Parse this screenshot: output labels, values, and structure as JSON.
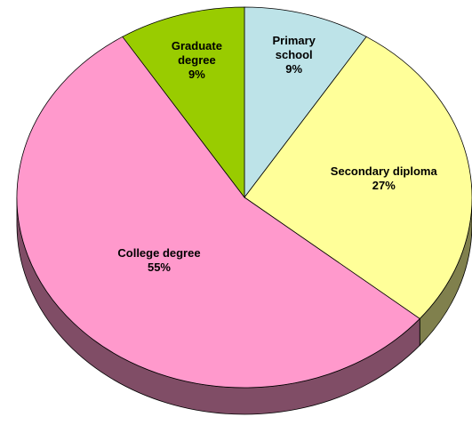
{
  "chart_data": {
    "type": "pie",
    "categories": [
      "Primary school",
      "Secondary diploma",
      "College degree",
      "Graduate degree"
    ],
    "values": [
      9,
      27,
      55,
      9
    ],
    "value_labels": [
      "9%",
      "27%",
      "55%",
      "9%"
    ],
    "colors": [
      "#bde3e8",
      "#ffff99",
      "#ff99cc",
      "#99cc00"
    ]
  }
}
